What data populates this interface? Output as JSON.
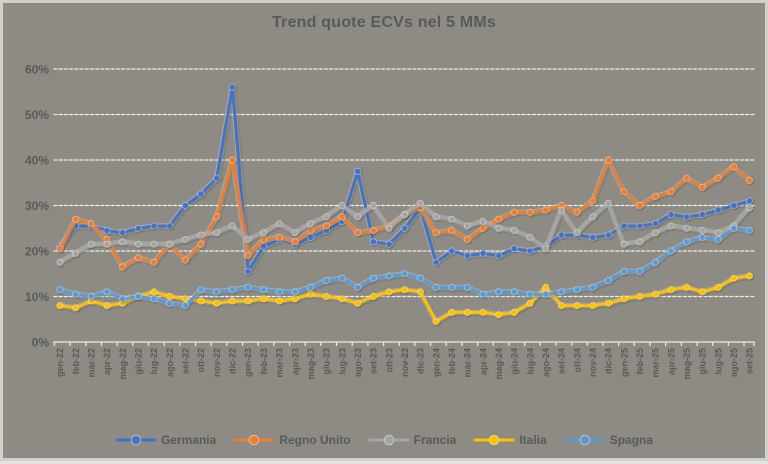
{
  "window": {
    "background": "#8d8b83",
    "frame_border": "#d0cfca"
  },
  "chart_data": {
    "type": "line",
    "title": "Trend quote ECVs nel 5 MMs",
    "title_color": "#595959",
    "axis_text_color": "#595959",
    "gridline_color": "#eeede9",
    "grid": "horizontal-dashed",
    "legend_position": "bottom",
    "xlabel": "",
    "ylabel": "",
    "ylim": [
      0,
      60
    ],
    "y_tick_labels": [
      "0%",
      "10%",
      "20%",
      "30%",
      "40%",
      "50%",
      "60%"
    ],
    "x_labels": [
      "gen-22",
      "feb-22",
      "mar-22",
      "apr-22",
      "mag-22",
      "giu-22",
      "lug-22",
      "ago-22",
      "set-22",
      "ott-22",
      "nov-22",
      "dic-22",
      "gen-23",
      "feb-23",
      "mar-23",
      "apr-23",
      "mag-23",
      "giu-23",
      "lug-23",
      "ago-23",
      "set-23",
      "ott-23",
      "nov-23",
      "dic-23",
      "gen-24",
      "feb-24",
      "mar-24",
      "apr-24",
      "mag-24",
      "giu-24",
      "lug-24",
      "ago-24",
      "set-24",
      "ott-24",
      "nov-24",
      "dic-24",
      "gen-25",
      "feb-25",
      "mar-25",
      "apr-25",
      "mag-25",
      "giu-25",
      "lug-25",
      "ago-25",
      "set-25"
    ],
    "series": [
      {
        "name": "Germania",
        "color": "#4472C4",
        "values": [
          21,
          25.5,
          25.5,
          24.5,
          24,
          25,
          25.5,
          25.5,
          30,
          32.5,
          36,
          56,
          15.5,
          21,
          22.5,
          21.5,
          23,
          24.5,
          26.5,
          37.5,
          22,
          21.5,
          25,
          29.5,
          17.5,
          20,
          19,
          19.5,
          19,
          20.5,
          20,
          21,
          23.5,
          23.5,
          23,
          23.5,
          25.5,
          25.5,
          26,
          28,
          27.5,
          28,
          29,
          30,
          31
        ]
      },
      {
        "name": "Regno Unito",
        "color": "#ED7D31",
        "values": [
          20.5,
          27,
          26,
          22.5,
          16.5,
          18.5,
          17.5,
          21.5,
          18,
          21.5,
          27.5,
          40,
          19,
          22.5,
          23,
          22,
          24.5,
          25.5,
          27.5,
          24,
          24.5,
          25.5,
          28,
          29.5,
          24,
          24.5,
          22.5,
          25,
          27,
          28.5,
          28.5,
          29,
          30,
          28.5,
          31,
          40,
          33,
          30,
          32,
          33,
          36,
          34,
          36,
          38.5,
          35.5
        ]
      },
      {
        "name": "Francia",
        "color": "#A5A5A5",
        "values": [
          17.5,
          19.5,
          21.5,
          21.5,
          22,
          21.5,
          21.5,
          21.5,
          22.5,
          23.5,
          24,
          25.5,
          22.5,
          24,
          26,
          24,
          26,
          27.5,
          30,
          27.5,
          30,
          25,
          28,
          30.5,
          27.5,
          27,
          25.5,
          26.5,
          25,
          24.5,
          23,
          20.5,
          29,
          24,
          27.5,
          30.5,
          21.5,
          22,
          24,
          25.5,
          25,
          24.5,
          24,
          25.5,
          29.5
        ]
      },
      {
        "name": "Italia",
        "color": "#FFC000",
        "values": [
          8,
          7.5,
          9,
          8,
          8.5,
          10,
          11,
          10,
          9.5,
          9,
          8.5,
          9,
          9,
          9.5,
          9,
          9.5,
          10.5,
          10,
          9.5,
          8.5,
          10,
          11,
          11.5,
          11,
          4.5,
          6.5,
          6.5,
          6.5,
          6,
          6.5,
          8.5,
          12,
          8,
          8,
          8,
          8.5,
          9.5,
          10,
          10.5,
          11.5,
          12,
          11,
          12,
          14,
          14.5
        ]
      },
      {
        "name": "Spagna",
        "color": "#5B9BD5",
        "values": [
          11.5,
          10.5,
          10,
          11,
          9.5,
          10,
          9.5,
          8.5,
          8,
          11.5,
          11,
          11.5,
          12,
          11.5,
          11,
          11,
          12,
          13.5,
          14,
          12,
          14,
          14.5,
          15,
          14,
          12,
          12,
          12,
          10.5,
          11,
          11,
          10.5,
          10.5,
          11,
          11.5,
          12,
          13.5,
          15.5,
          15.5,
          17.5,
          20,
          22,
          23,
          22.5,
          25,
          24.5
        ]
      }
    ]
  }
}
